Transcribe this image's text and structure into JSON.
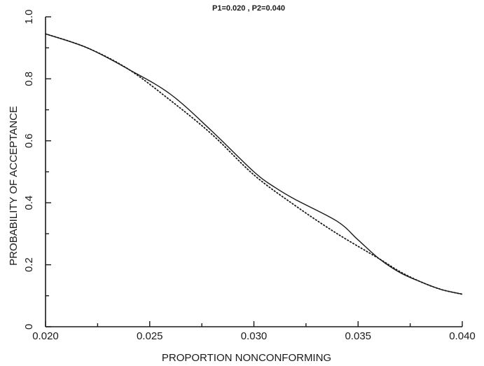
{
  "chart_data": {
    "type": "line",
    "title": "P1=0.020 , P2=0.040",
    "xlabel": "PROPORTION NONCONFORMING",
    "ylabel": "PROBABILITY OF ACCEPTANCE",
    "xlim": [
      0.02,
      0.04
    ],
    "ylim": [
      0,
      1.0
    ],
    "grid": false,
    "x_ticks": [
      "0.020",
      "0.025",
      "0.030",
      "0.035",
      "0.040"
    ],
    "y_ticks": [
      "0",
      "0.2",
      "0.4",
      "0.6",
      "0.8",
      "1.0"
    ],
    "series": [
      {
        "style": "solid",
        "x": [
          0.02,
          0.022,
          0.024,
          0.026,
          0.028,
          0.03,
          0.031,
          0.032,
          0.034,
          0.035,
          0.036,
          0.037,
          0.038,
          0.039,
          0.04
        ],
        "y": [
          0.945,
          0.9,
          0.83,
          0.75,
          0.63,
          0.5,
          0.45,
          0.41,
          0.34,
          0.28,
          0.22,
          0.175,
          0.145,
          0.12,
          0.105
        ]
      },
      {
        "style": "dotted",
        "x": [
          0.02,
          0.022,
          0.024,
          0.026,
          0.028,
          0.03,
          0.032,
          0.034,
          0.036,
          0.037,
          0.038,
          0.039,
          0.04
        ],
        "y": [
          0.945,
          0.9,
          0.83,
          0.73,
          0.62,
          0.49,
          0.39,
          0.3,
          0.22,
          0.178,
          0.145,
          0.12,
          0.105
        ]
      }
    ]
  }
}
